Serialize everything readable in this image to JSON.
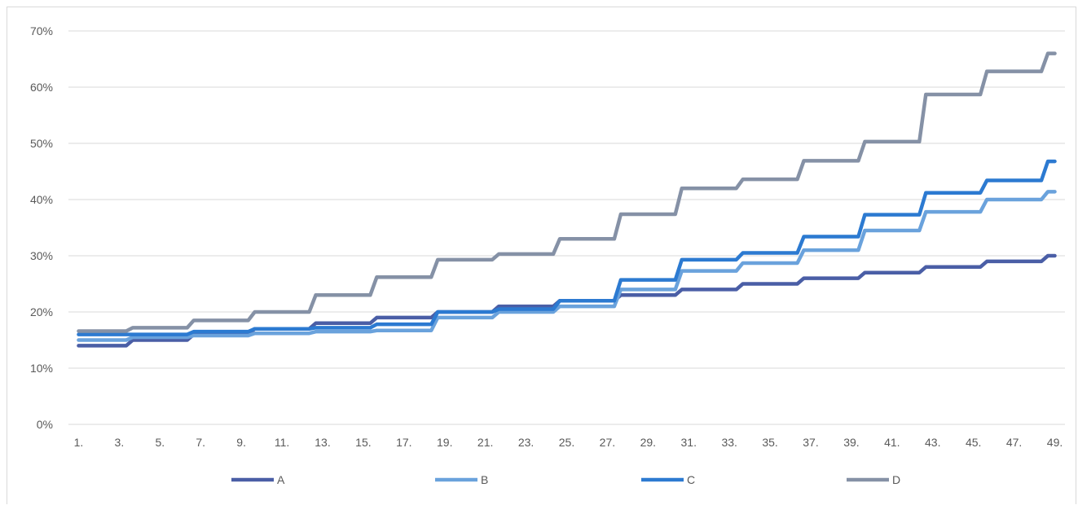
{
  "chart_data": {
    "type": "line",
    "step": true,
    "title": "",
    "xlabel": "",
    "ylabel": "",
    "ylim": [
      0,
      70
    ],
    "y_unit": "%",
    "yticks": [
      "0%",
      "10%",
      "20%",
      "30%",
      "40%",
      "50%",
      "60%",
      "70%"
    ],
    "x": [
      1,
      2,
      3,
      4,
      5,
      6,
      7,
      8,
      9,
      10,
      11,
      12,
      13,
      14,
      15,
      16,
      17,
      18,
      19,
      20,
      21,
      22,
      23,
      24,
      25,
      26,
      27,
      28,
      29,
      30,
      31,
      32,
      33,
      34,
      35,
      36,
      37,
      38,
      39,
      40,
      41,
      42,
      43,
      44,
      45,
      46,
      47,
      48,
      49
    ],
    "xticks": [
      "1.",
      "3.",
      "5.",
      "7.",
      "9.",
      "11.",
      "13.",
      "15.",
      "17.",
      "19.",
      "21.",
      "23.",
      "25.",
      "27.",
      "29.",
      "31.",
      "33.",
      "35.",
      "37.",
      "39.",
      "41.",
      "43.",
      "45.",
      "47.",
      "49."
    ],
    "grid": true,
    "legend_position": "bottom",
    "series": [
      {
        "name": "A",
        "color": "#4a5ea6",
        "values": [
          14,
          14,
          14,
          15,
          15,
          15,
          16,
          16,
          16,
          17,
          17,
          17,
          18,
          18,
          18,
          19,
          19,
          19,
          20,
          20,
          20,
          21,
          21,
          21,
          22,
          22,
          22,
          23,
          23,
          23,
          24,
          24,
          24,
          25,
          25,
          25,
          26,
          26,
          26,
          27,
          27,
          27,
          28,
          28,
          28,
          29,
          29,
          29,
          30
        ]
      },
      {
        "name": "B",
        "color": "#6aa2dc",
        "values": [
          15,
          15,
          15,
          15.5,
          15.5,
          15.5,
          15.8,
          15.8,
          15.8,
          16.2,
          16.2,
          16.2,
          16.5,
          16.5,
          16.5,
          16.7,
          16.7,
          16.7,
          19,
          19,
          19,
          20,
          20,
          20,
          21,
          21,
          21,
          24,
          24,
          24,
          27.3,
          27.3,
          27.3,
          28.7,
          28.7,
          28.7,
          31,
          31,
          31,
          34.5,
          34.5,
          34.5,
          37.8,
          37.8,
          37.8,
          40,
          40,
          40,
          41.4
        ]
      },
      {
        "name": "C",
        "color": "#2c7ad1",
        "values": [
          16,
          16,
          16,
          16,
          16,
          16,
          16.5,
          16.5,
          16.5,
          17,
          17,
          17,
          17.2,
          17.2,
          17.2,
          17.8,
          17.8,
          17.8,
          20,
          20,
          20,
          20.5,
          20.5,
          20.5,
          22,
          22,
          22,
          25.7,
          25.7,
          25.7,
          29.3,
          29.3,
          29.3,
          30.5,
          30.5,
          30.5,
          33.4,
          33.4,
          33.4,
          37.3,
          37.3,
          37.3,
          41.2,
          41.2,
          41.2,
          43.4,
          43.4,
          43.4,
          46.8
        ]
      },
      {
        "name": "D",
        "color": "#8591a6",
        "values": [
          16.6,
          16.6,
          16.6,
          17.2,
          17.2,
          17.2,
          18.5,
          18.5,
          18.5,
          20,
          20,
          20,
          23,
          23,
          23,
          26.2,
          26.2,
          26.2,
          29.3,
          29.3,
          29.3,
          30.3,
          30.3,
          30.3,
          33,
          33,
          33,
          37.4,
          37.4,
          37.4,
          42,
          42,
          42,
          43.6,
          43.6,
          43.6,
          46.9,
          46.9,
          46.9,
          50.3,
          50.3,
          50.3,
          58.7,
          58.7,
          58.7,
          62.8,
          62.8,
          62.8,
          66
        ]
      }
    ]
  }
}
